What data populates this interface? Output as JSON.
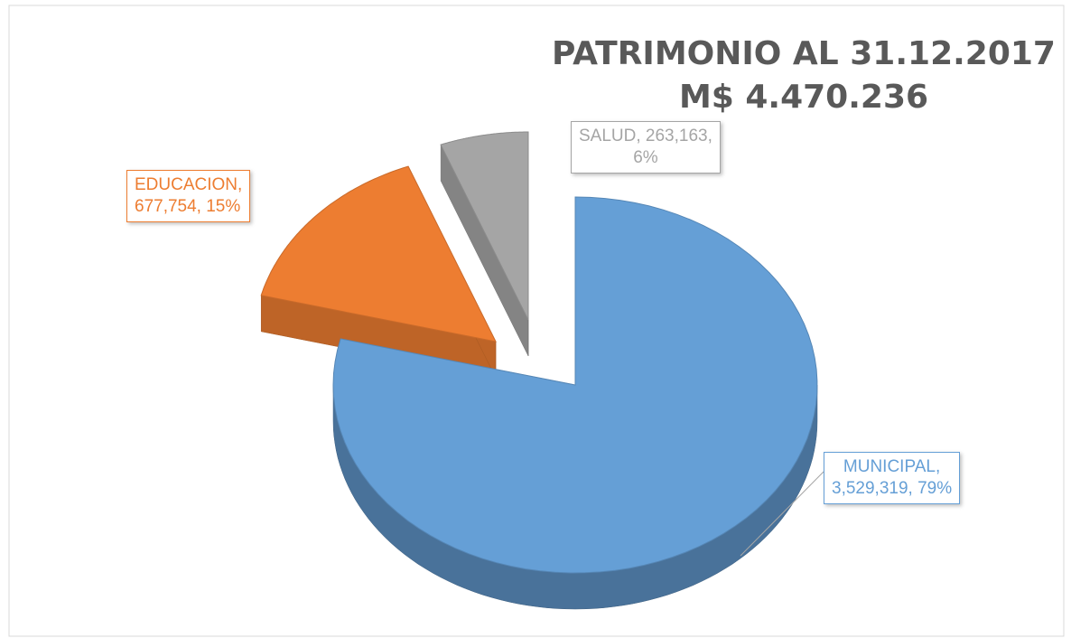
{
  "chart_data": {
    "type": "pie3d",
    "title": [
      "PATRIMONIO AL 31.12.2017",
      "M$ 4.470.236"
    ],
    "categories": [
      "MUNICIPAL",
      "EDUCACION",
      "SALUD"
    ],
    "values": [
      3529319,
      677754,
      263163
    ],
    "colors": [
      "#659fd6",
      "#ed7d31",
      "#a5a5a5"
    ],
    "data_labels": [
      [
        "MUNICIPAL,",
        "3,529,319, 79%"
      ],
      [
        "EDUCACION,",
        "677,754, 15%"
      ],
      [
        "SALUD, 263,163,",
        "6%"
      ]
    ]
  }
}
